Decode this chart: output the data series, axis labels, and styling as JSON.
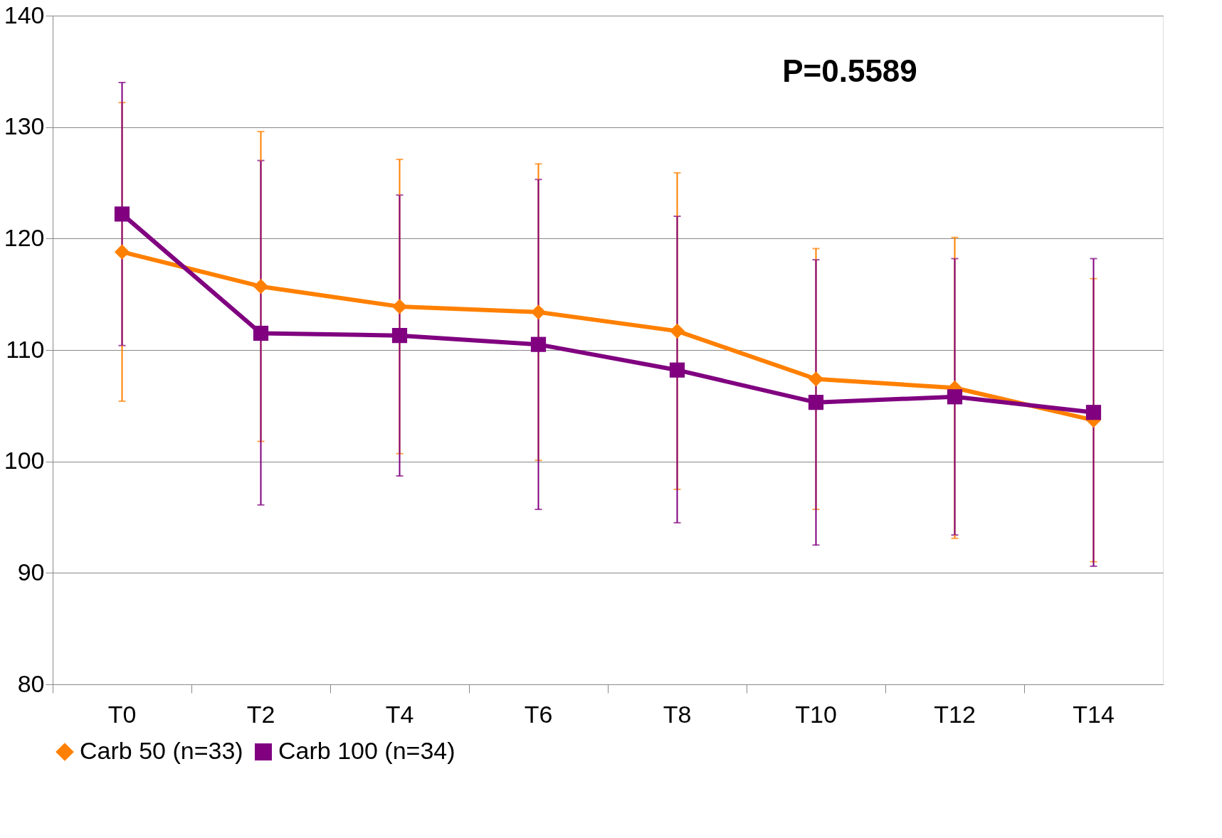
{
  "chart_data": {
    "type": "line",
    "categories": [
      "T0",
      "T2",
      "T4",
      "T6",
      "T8",
      "T10",
      "T12",
      "T14"
    ],
    "series": [
      {
        "name": "Carb 50 (n=33)",
        "color": "#ff8000",
        "marker": "diamond",
        "values": [
          118.8,
          115.7,
          113.9,
          113.4,
          111.7,
          107.4,
          106.6,
          103.7
        ],
        "errors": [
          [
            105.4,
            132.2
          ],
          [
            101.8,
            129.6
          ],
          [
            100.7,
            127.1
          ],
          [
            100.1,
            126.7
          ],
          [
            97.5,
            125.9
          ],
          [
            95.7,
            119.1
          ],
          [
            93.1,
            120.1
          ],
          [
            91.0,
            116.4
          ]
        ]
      },
      {
        "name": "Carb 100 (n=34)",
        "color": "#800080",
        "marker": "square",
        "values": [
          122.2,
          111.5,
          111.3,
          110.5,
          108.2,
          105.3,
          105.8,
          104.4
        ],
        "errors": [
          [
            110.4,
            134.0
          ],
          [
            96.1,
            127.0
          ],
          [
            98.7,
            123.9
          ],
          [
            95.7,
            125.3
          ],
          [
            94.5,
            122.0
          ],
          [
            92.5,
            118.1
          ],
          [
            93.4,
            118.2
          ],
          [
            90.6,
            118.2
          ]
        ]
      }
    ],
    "ylim": [
      80,
      140
    ],
    "yticks": [
      80,
      90,
      100,
      110,
      120,
      130,
      140
    ],
    "grid": "y",
    "legend": "bottom",
    "line_style": "solid",
    "annotations": [
      "P=0.5589"
    ]
  }
}
